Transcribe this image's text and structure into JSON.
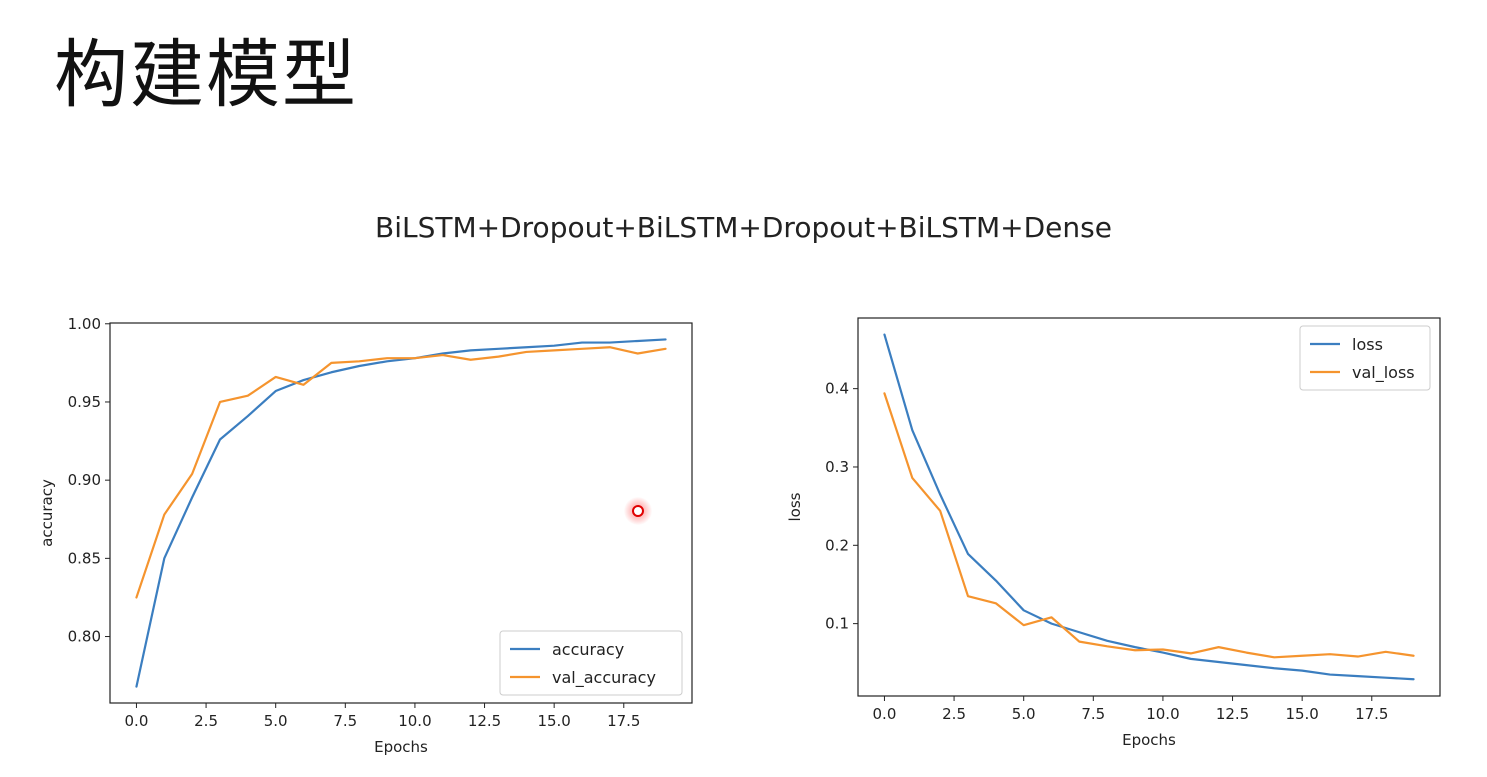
{
  "slide": {
    "title": "构建模型",
    "subtitle": "BiLSTM+Dropout+BiLSTM+Dropout+BiLSTM+Dense"
  },
  "chart_data": [
    {
      "type": "line",
      "xlabel": "Epochs",
      "ylabel": "accuracy",
      "xlim": [
        -0.95,
        19.95
      ],
      "ylim": [
        0.7575,
        1.0005
      ],
      "xticks": [
        "0.0",
        "2.5",
        "5.0",
        "7.5",
        "10.0",
        "12.5",
        "15.0",
        "17.5"
      ],
      "yticks": [
        "0.80",
        "0.85",
        "0.90",
        "0.95",
        "1.00"
      ],
      "legend_position": "lower right",
      "grid": false,
      "x": [
        0,
        1,
        2,
        3,
        4,
        5,
        6,
        7,
        8,
        9,
        10,
        11,
        12,
        13,
        14,
        15,
        16,
        17,
        18,
        19
      ],
      "series": [
        {
          "name": "accuracy",
          "color": "#3b7ec0",
          "values": [
            0.768,
            0.85,
            0.889,
            0.926,
            0.941,
            0.957,
            0.964,
            0.969,
            0.973,
            0.976,
            0.978,
            0.981,
            0.983,
            0.984,
            0.985,
            0.986,
            0.988,
            0.988,
            0.989,
            0.99
          ]
        },
        {
          "name": "val_accuracy",
          "color": "#f5942e",
          "values": [
            0.825,
            0.878,
            0.904,
            0.95,
            0.954,
            0.966,
            0.961,
            0.975,
            0.976,
            0.978,
            0.978,
            0.98,
            0.977,
            0.979,
            0.982,
            0.983,
            0.984,
            0.985,
            0.981,
            0.984
          ]
        }
      ]
    },
    {
      "type": "line",
      "xlabel": "Epochs",
      "ylabel": "loss",
      "xlim": [
        -0.95,
        19.95
      ],
      "ylim": [
        0.0076,
        0.4902
      ],
      "xticks": [
        "0.0",
        "2.5",
        "5.0",
        "7.5",
        "10.0",
        "12.5",
        "15.0",
        "17.5"
      ],
      "yticks": [
        "0.1",
        "0.2",
        "0.3",
        "0.4"
      ],
      "legend_position": "upper right",
      "grid": false,
      "x": [
        0,
        1,
        2,
        3,
        4,
        5,
        6,
        7,
        8,
        9,
        10,
        11,
        12,
        13,
        14,
        15,
        16,
        17,
        18,
        19
      ],
      "series": [
        {
          "name": "loss",
          "color": "#3b7ec0",
          "values": [
            0.469,
            0.347,
            0.265,
            0.189,
            0.155,
            0.117,
            0.1,
            0.089,
            0.078,
            0.07,
            0.063,
            0.055,
            0.051,
            0.047,
            0.043,
            0.04,
            0.035,
            0.033,
            0.031,
            0.029
          ]
        },
        {
          "name": "val_loss",
          "color": "#f5942e",
          "values": [
            0.394,
            0.286,
            0.244,
            0.135,
            0.126,
            0.098,
            0.108,
            0.077,
            0.071,
            0.066,
            0.067,
            0.062,
            0.07,
            0.063,
            0.057,
            0.059,
            0.061,
            0.058,
            0.064,
            0.059
          ]
        }
      ]
    }
  ]
}
